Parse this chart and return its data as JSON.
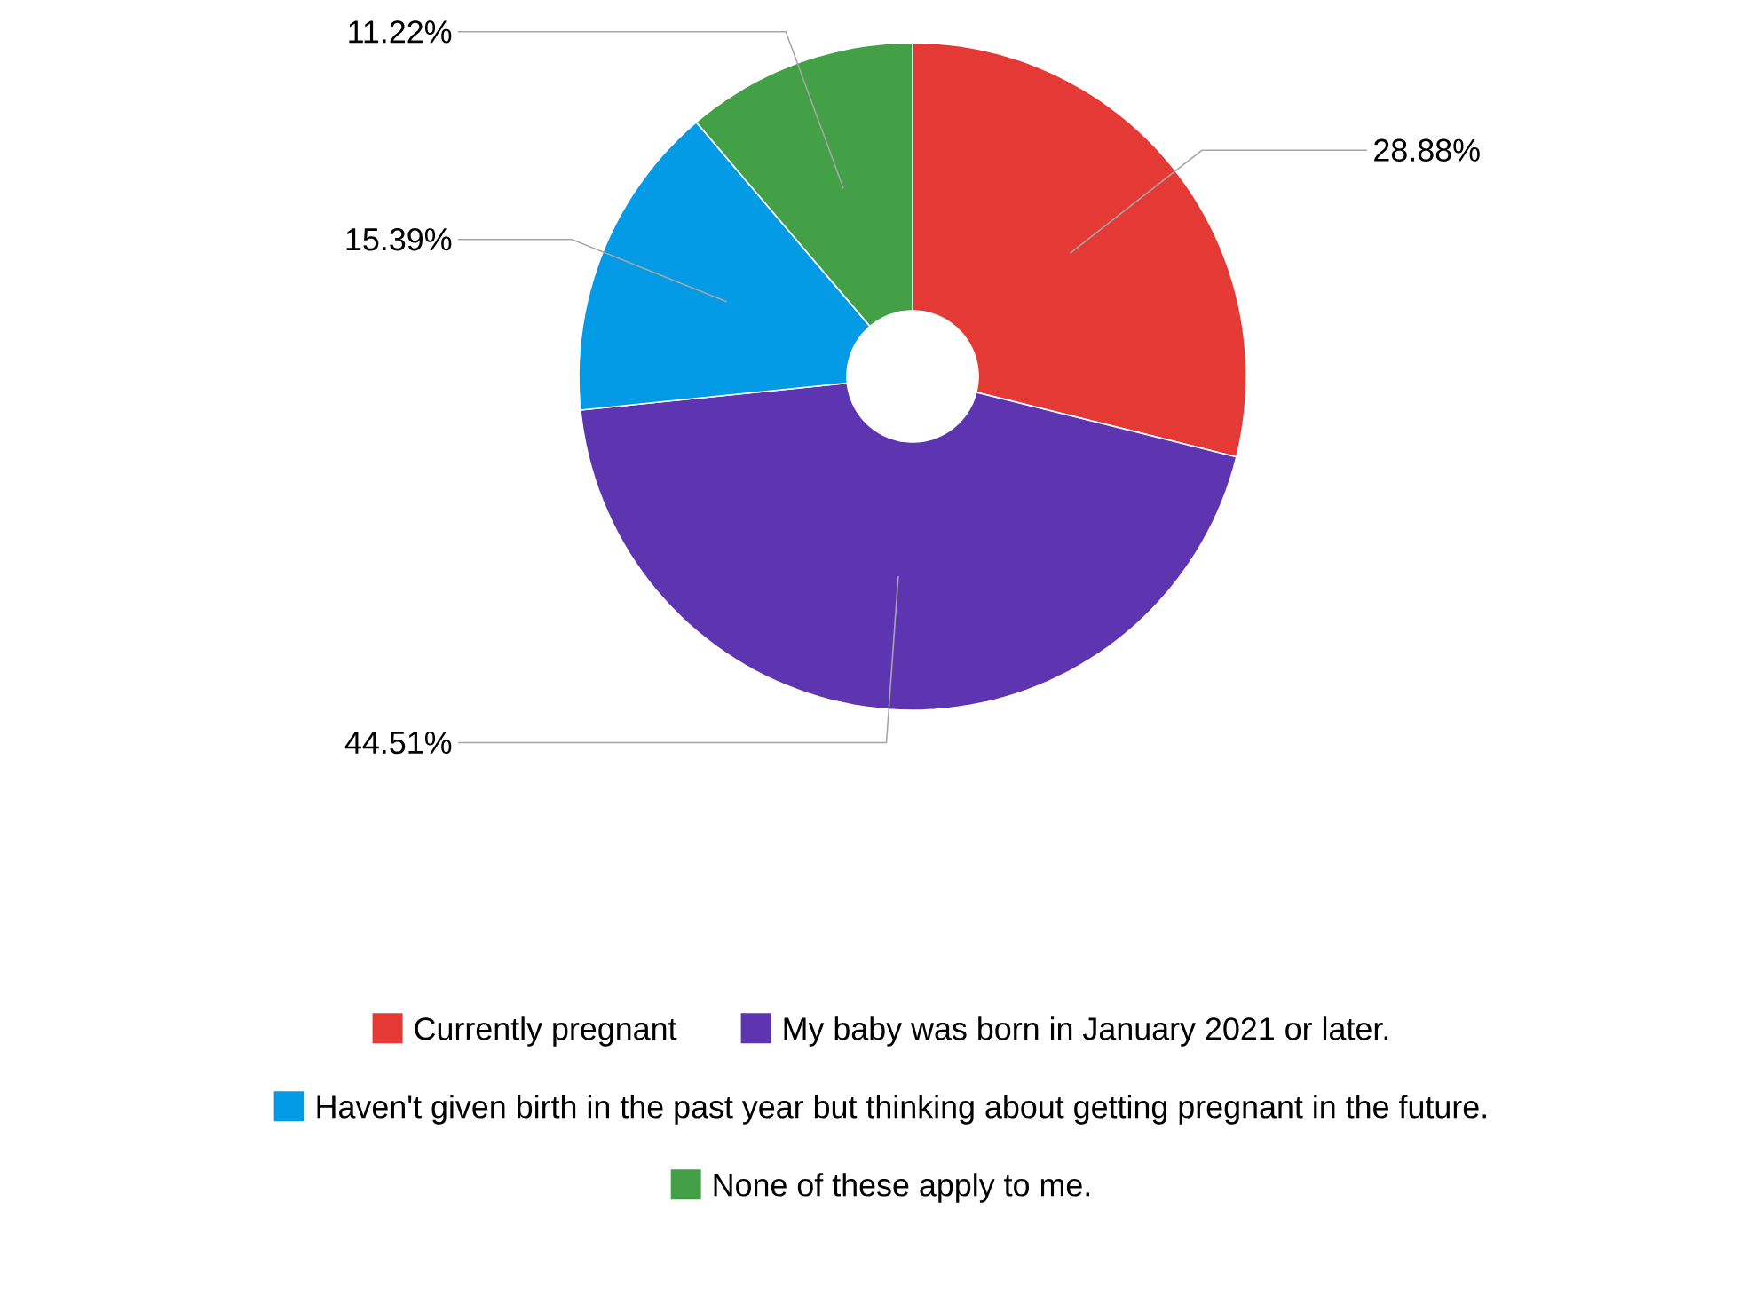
{
  "chart_data": {
    "type": "donut",
    "categories": [
      "Currently pregnant",
      "My baby was born in January 2021 or later.",
      "Haven't given birth in the past year but thinking about getting pregnant in the future.",
      "None of these apply to me."
    ],
    "values": [
      28.88,
      44.51,
      15.39,
      11.22
    ],
    "value_labels": [
      "28.88%",
      "44.51%",
      "15.39%",
      "11.22%"
    ],
    "colors": [
      "#e53935",
      "#5e35b1",
      "#039be5",
      "#43a047"
    ],
    "legend": "bottom"
  }
}
